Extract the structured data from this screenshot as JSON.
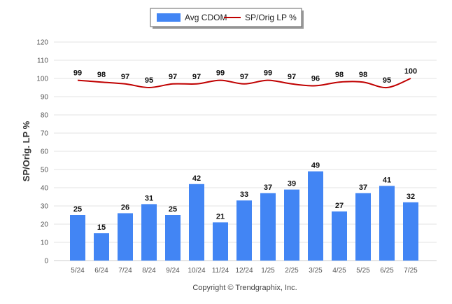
{
  "chart_data": {
    "type": "bar",
    "categories": [
      "5/24",
      "6/24",
      "7/24",
      "8/24",
      "9/24",
      "10/24",
      "11/24",
      "12/24",
      "1/25",
      "2/25",
      "3/25",
      "4/25",
      "5/25",
      "6/25",
      "7/25"
    ],
    "series": [
      {
        "name": "Avg CDOM",
        "type": "bar",
        "color": "#4285f4",
        "values": [
          25,
          15,
          26,
          31,
          25,
          42,
          21,
          33,
          37,
          39,
          49,
          27,
          37,
          41,
          32
        ]
      },
      {
        "name": "SP/Orig LP %",
        "type": "line",
        "color": "#c00000",
        "values": [
          99,
          98,
          97,
          95,
          97,
          97,
          99,
          97,
          99,
          97,
          96,
          98,
          98,
          95,
          100
        ]
      }
    ],
    "ylabel": "SP/Orig. LP %",
    "xlabel": "",
    "ylim": [
      0,
      120
    ],
    "yticks": [
      0,
      10,
      20,
      30,
      40,
      50,
      60,
      70,
      80,
      90,
      100,
      110,
      120
    ],
    "grid": true,
    "legend_position": "top-center"
  },
  "footer": {
    "copyright": "Copyright © Trendgraphix, Inc."
  }
}
